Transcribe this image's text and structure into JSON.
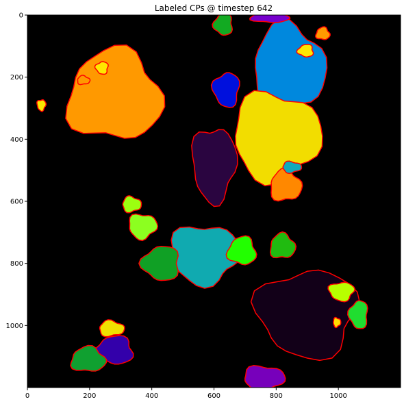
{
  "chart_data": {
    "type": "heatmap",
    "title": "Labeled CPs @ timestep 642",
    "xlabel": "",
    "ylabel": "",
    "xlim": [
      0,
      1200
    ],
    "ylim": [
      1200,
      0
    ],
    "x_ticks": [
      0,
      200,
      400,
      600,
      800,
      1000
    ],
    "y_ticks": [
      0,
      200,
      400,
      600,
      800,
      1000
    ],
    "grid": false,
    "background_color": "#000000",
    "boundary_color": "#ff0000",
    "regions": [
      {
        "label": "orange-large",
        "color": "#ff9900",
        "center": [
          280,
          260
        ],
        "size": [
          150,
          145
        ]
      },
      {
        "label": "blue-large",
        "color": "#0088dd",
        "center": [
          840,
          170
        ],
        "size": [
          115,
          140
        ]
      },
      {
        "label": "yellow-center",
        "color": "#f2dd00",
        "center": [
          800,
          390
        ],
        "size": [
          140,
          140
        ]
      },
      {
        "label": "dark-purple-diagonal",
        "color": "#2a0540",
        "center": [
          600,
          480
        ],
        "size": [
          70,
          120
        ]
      },
      {
        "label": "royal-blue",
        "color": "#0010dd",
        "center": [
          640,
          240
        ],
        "size": [
          42,
          55
        ]
      },
      {
        "label": "green-top",
        "color": "#12aa22",
        "center": [
          630,
          30
        ],
        "size": [
          30,
          35
        ]
      },
      {
        "label": "purple-top",
        "color": "#7700cc",
        "center": [
          780,
          5
        ],
        "size": [
          60,
          20
        ]
      },
      {
        "label": "orange-right",
        "color": "#ff8800",
        "center": [
          830,
          550
        ],
        "size": [
          50,
          50
        ]
      },
      {
        "label": "teal-small",
        "color": "#10aabb",
        "center": [
          850,
          490
        ],
        "size": [
          30,
          18
        ]
      },
      {
        "label": "teal-middle",
        "color": "#10aab0",
        "center": [
          570,
          770
        ],
        "size": [
          110,
          95
        ]
      },
      {
        "label": "dark-bottom",
        "color": "#120018",
        "center": [
          900,
          960
        ],
        "size": [
          160,
          140
        ]
      },
      {
        "label": "green-left-mid",
        "color": "#10a025",
        "center": [
          430,
          800
        ],
        "size": [
          60,
          55
        ]
      },
      {
        "label": "lime-mid",
        "color": "#22ff00",
        "center": [
          690,
          760
        ],
        "size": [
          45,
          45
        ]
      },
      {
        "label": "green-mid-right",
        "color": "#20bb10",
        "center": [
          820,
          745
        ],
        "size": [
          40,
          40
        ]
      },
      {
        "label": "lime-left-1",
        "color": "#9cff10",
        "center": [
          335,
          610
        ],
        "size": [
          30,
          25
        ]
      },
      {
        "label": "lime-left-2",
        "color": "#8cff20",
        "center": [
          370,
          680
        ],
        "size": [
          45,
          40
        ]
      },
      {
        "label": "lime-right",
        "color": "#b8ff00",
        "center": [
          1010,
          890
        ],
        "size": [
          40,
          30
        ]
      },
      {
        "label": "green-right",
        "color": "#20dd30",
        "center": [
          1065,
          965
        ],
        "size": [
          30,
          45
        ]
      },
      {
        "label": "blue-purple-bottom",
        "color": "#3300aa",
        "center": [
          280,
          1080
        ],
        "size": [
          60,
          45
        ]
      },
      {
        "label": "green-bottom-left",
        "color": "#10a030",
        "center": [
          195,
          1110
        ],
        "size": [
          55,
          40
        ]
      },
      {
        "label": "yellow-bottom-left",
        "color": "#f0e000",
        "center": [
          270,
          1010
        ],
        "size": [
          40,
          25
        ]
      },
      {
        "label": "purple-bottom",
        "color": "#7700bb",
        "center": [
          760,
          1170
        ],
        "size": [
          65,
          40
        ]
      },
      {
        "label": "yellow-left-small",
        "color": "#f8e800",
        "center": [
          45,
          290
        ],
        "size": [
          14,
          18
        ]
      },
      {
        "label": "yellow-top-left",
        "color": "#ffe800",
        "center": [
          240,
          170
        ],
        "size": [
          20,
          20
        ]
      },
      {
        "label": "yellow-top-right",
        "color": "#ffe800",
        "center": [
          895,
          115
        ],
        "size": [
          25,
          20
        ]
      },
      {
        "label": "orange-top-right",
        "color": "#ff9900",
        "center": [
          950,
          60
        ],
        "size": [
          22,
          20
        ]
      },
      {
        "label": "orange-small-left",
        "color": "#ff9900",
        "center": [
          180,
          210
        ],
        "size": [
          20,
          14
        ]
      },
      {
        "label": "yellow-right-small",
        "color": "#ffdd00",
        "center": [
          995,
          990
        ],
        "size": [
          12,
          15
        ]
      }
    ]
  }
}
